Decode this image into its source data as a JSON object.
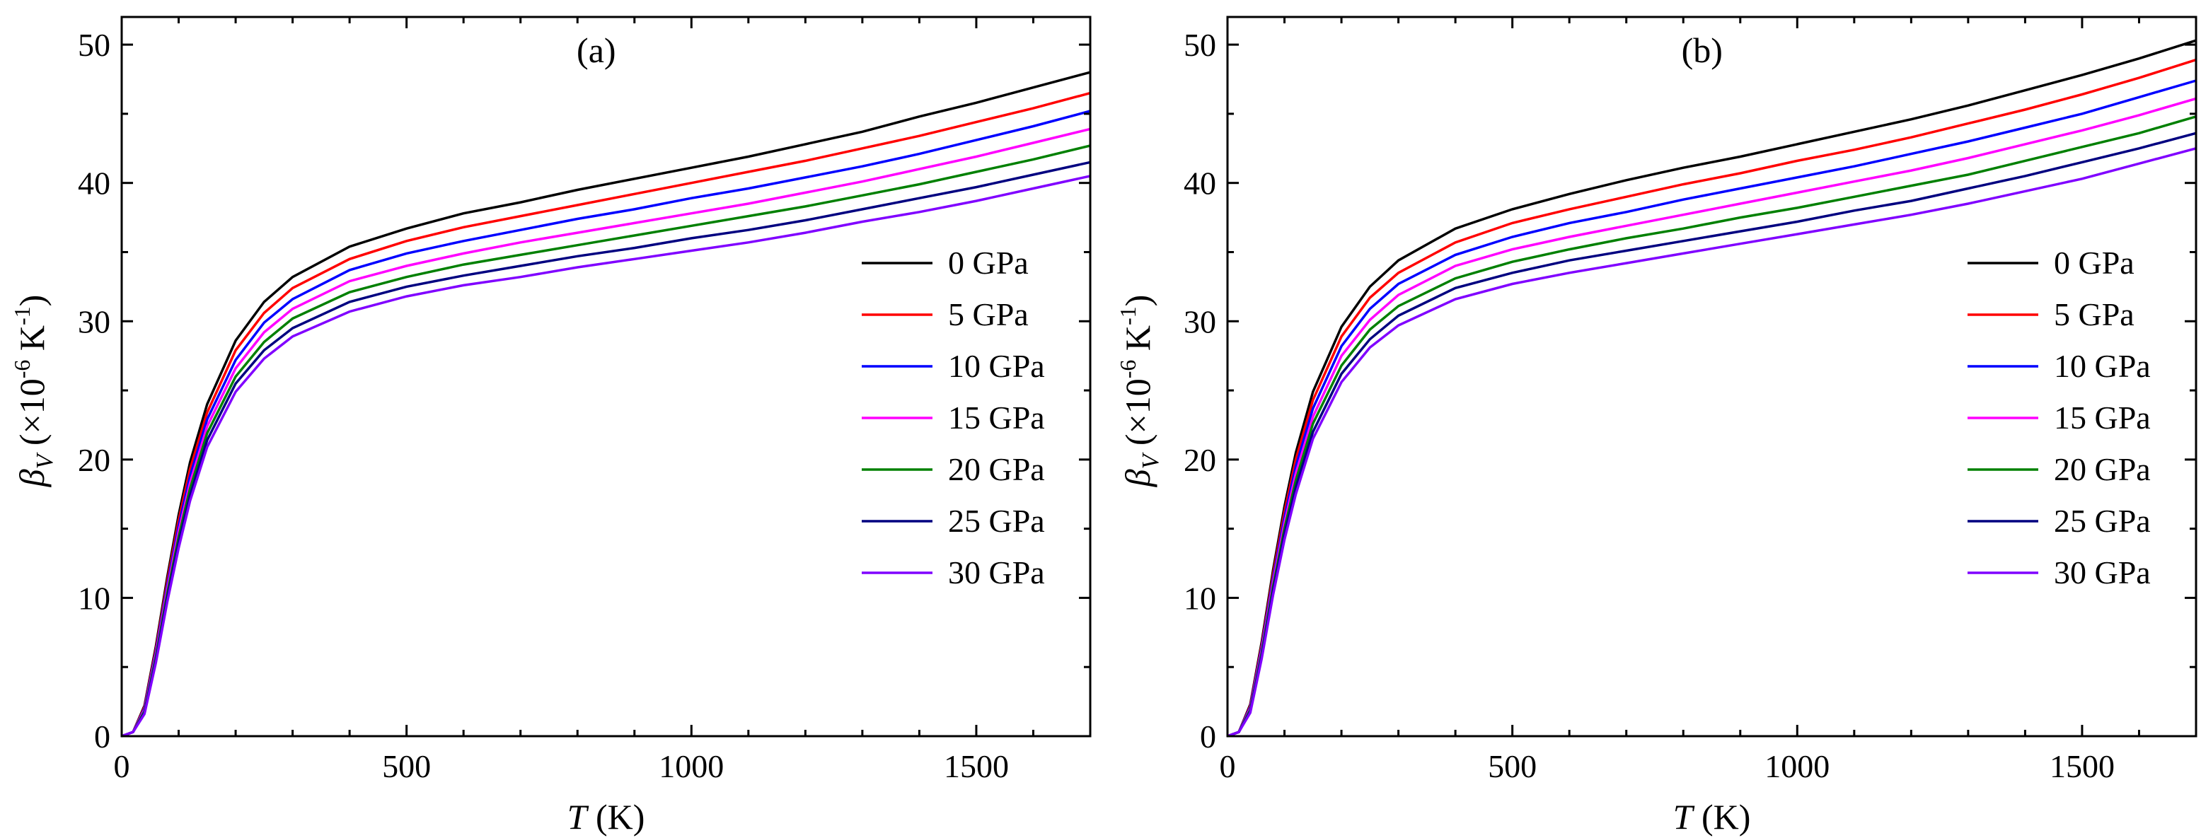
{
  "chart_data": [
    {
      "type": "line",
      "panel_label": "(a)",
      "xlabel": "T (K)",
      "ylabel": "β_V (×10^-6 K^-1)",
      "xlim": [
        0,
        1700
      ],
      "ylim": [
        0,
        52
      ],
      "xticks": [
        0,
        500,
        1000,
        1500
      ],
      "yticks": [
        0,
        10,
        20,
        30,
        40,
        50
      ],
      "legend_position": "right",
      "series": [
        {
          "name": "0 GPa",
          "color": "#000000",
          "x": [
            0,
            20,
            40,
            60,
            80,
            100,
            120,
            150,
            200,
            250,
            300,
            400,
            500,
            600,
            700,
            800,
            900,
            1000,
            1100,
            1200,
            1300,
            1400,
            1500,
            1600,
            1700
          ],
          "y": [
            0,
            0.3,
            2.2,
            6.5,
            11.5,
            16.0,
            19.8,
            24.0,
            28.6,
            31.4,
            33.2,
            35.4,
            36.7,
            37.8,
            38.6,
            39.5,
            40.3,
            41.1,
            41.9,
            42.8,
            43.7,
            44.8,
            45.8,
            46.9,
            48.0
          ]
        },
        {
          "name": "5 GPa",
          "color": "#ff0000",
          "x": [
            0,
            20,
            40,
            60,
            80,
            100,
            120,
            150,
            200,
            250,
            300,
            400,
            500,
            600,
            700,
            800,
            900,
            1000,
            1100,
            1200,
            1300,
            1400,
            1500,
            1600,
            1700
          ],
          "y": [
            0,
            0.3,
            2.1,
            6.3,
            11.2,
            15.6,
            19.3,
            23.4,
            27.9,
            30.6,
            32.4,
            34.5,
            35.8,
            36.8,
            37.6,
            38.4,
            39.2,
            40.0,
            40.8,
            41.6,
            42.5,
            43.4,
            44.4,
            45.4,
            46.5
          ]
        },
        {
          "name": "10 GPa",
          "color": "#0000ff",
          "x": [
            0,
            20,
            40,
            60,
            80,
            100,
            120,
            150,
            200,
            250,
            300,
            400,
            500,
            600,
            700,
            800,
            900,
            1000,
            1100,
            1200,
            1300,
            1400,
            1500,
            1600,
            1700
          ],
          "y": [
            0,
            0.3,
            2.0,
            6.1,
            10.9,
            15.2,
            18.8,
            22.9,
            27.2,
            29.9,
            31.6,
            33.7,
            34.9,
            35.8,
            36.6,
            37.4,
            38.1,
            38.9,
            39.6,
            40.4,
            41.2,
            42.1,
            43.1,
            44.1,
            45.2
          ]
        },
        {
          "name": "15 GPa",
          "color": "#ff00ff",
          "x": [
            0,
            20,
            40,
            60,
            80,
            100,
            120,
            150,
            200,
            250,
            300,
            400,
            500,
            600,
            700,
            800,
            900,
            1000,
            1100,
            1200,
            1300,
            1400,
            1500,
            1600,
            1700
          ],
          "y": [
            0,
            0.3,
            1.9,
            5.9,
            10.6,
            14.8,
            18.3,
            22.4,
            26.6,
            29.2,
            30.9,
            32.9,
            34.0,
            34.9,
            35.7,
            36.4,
            37.1,
            37.8,
            38.5,
            39.3,
            40.1,
            41.0,
            41.9,
            42.9,
            43.9
          ]
        },
        {
          "name": "20 GPa",
          "color": "#008000",
          "x": [
            0,
            20,
            40,
            60,
            80,
            100,
            120,
            150,
            200,
            250,
            300,
            400,
            500,
            600,
            700,
            800,
            900,
            1000,
            1100,
            1200,
            1300,
            1400,
            1500,
            1600,
            1700
          ],
          "y": [
            0,
            0.3,
            1.8,
            5.7,
            10.3,
            14.4,
            17.9,
            21.9,
            26.0,
            28.5,
            30.2,
            32.1,
            33.2,
            34.1,
            34.8,
            35.5,
            36.2,
            36.9,
            37.6,
            38.3,
            39.1,
            39.9,
            40.8,
            41.7,
            42.7
          ]
        },
        {
          "name": "25 GPa",
          "color": "#000080",
          "x": [
            0,
            20,
            40,
            60,
            80,
            100,
            120,
            150,
            200,
            250,
            300,
            400,
            500,
            600,
            700,
            800,
            900,
            1000,
            1100,
            1200,
            1300,
            1400,
            1500,
            1600,
            1700
          ],
          "y": [
            0,
            0.3,
            1.7,
            5.5,
            10.0,
            14.0,
            17.4,
            21.4,
            25.5,
            27.9,
            29.5,
            31.4,
            32.5,
            33.3,
            34.0,
            34.7,
            35.3,
            36.0,
            36.6,
            37.3,
            38.1,
            38.9,
            39.7,
            40.6,
            41.5
          ]
        },
        {
          "name": "30 GPa",
          "color": "#8000ff",
          "x": [
            0,
            20,
            40,
            60,
            80,
            100,
            120,
            150,
            200,
            250,
            300,
            400,
            500,
            600,
            700,
            800,
            900,
            1000,
            1100,
            1200,
            1300,
            1400,
            1500,
            1600,
            1700
          ],
          "y": [
            0,
            0.3,
            1.6,
            5.3,
            9.7,
            13.6,
            17.0,
            20.9,
            24.9,
            27.3,
            28.9,
            30.7,
            31.8,
            32.6,
            33.2,
            33.9,
            34.5,
            35.1,
            35.7,
            36.4,
            37.2,
            37.9,
            38.7,
            39.6,
            40.5
          ]
        }
      ]
    },
    {
      "type": "line",
      "panel_label": "(b)",
      "xlabel": "T (K)",
      "ylabel": "β_V (×10^-6 K^-1)",
      "xlim": [
        0,
        1700
      ],
      "ylim": [
        0,
        52
      ],
      "xticks": [
        0,
        500,
        1000,
        1500
      ],
      "yticks": [
        0,
        10,
        20,
        30,
        40,
        50
      ],
      "legend_position": "right",
      "series": [
        {
          "name": "0 GPa",
          "color": "#000000",
          "x": [
            0,
            20,
            40,
            60,
            80,
            100,
            120,
            150,
            200,
            250,
            300,
            400,
            500,
            600,
            700,
            800,
            900,
            1000,
            1100,
            1200,
            1300,
            1400,
            1500,
            1600,
            1700
          ],
          "y": [
            0,
            0.3,
            2.3,
            6.8,
            12.0,
            16.6,
            20.5,
            24.9,
            29.6,
            32.5,
            34.4,
            36.7,
            38.1,
            39.2,
            40.2,
            41.1,
            41.9,
            42.8,
            43.7,
            44.6,
            45.6,
            46.7,
            47.8,
            49.0,
            50.3
          ]
        },
        {
          "name": "5 GPa",
          "color": "#ff0000",
          "x": [
            0,
            20,
            40,
            60,
            80,
            100,
            120,
            150,
            200,
            250,
            300,
            400,
            500,
            600,
            700,
            800,
            900,
            1000,
            1100,
            1200,
            1300,
            1400,
            1500,
            1600,
            1700
          ],
          "y": [
            0,
            0.3,
            2.2,
            6.6,
            11.7,
            16.2,
            20.0,
            24.3,
            28.9,
            31.7,
            33.5,
            35.7,
            37.1,
            38.1,
            39.0,
            39.9,
            40.7,
            41.6,
            42.4,
            43.3,
            44.3,
            45.3,
            46.4,
            47.6,
            48.9
          ]
        },
        {
          "name": "10 GPa",
          "color": "#0000ff",
          "x": [
            0,
            20,
            40,
            60,
            80,
            100,
            120,
            150,
            200,
            250,
            300,
            400,
            500,
            600,
            700,
            800,
            900,
            1000,
            1100,
            1200,
            1300,
            1400,
            1500,
            1600,
            1700
          ],
          "y": [
            0,
            0.3,
            2.1,
            6.4,
            11.4,
            15.8,
            19.5,
            23.7,
            28.2,
            30.9,
            32.7,
            34.8,
            36.1,
            37.1,
            37.9,
            38.8,
            39.6,
            40.4,
            41.2,
            42.1,
            43.0,
            44.0,
            45.0,
            46.2,
            47.4
          ]
        },
        {
          "name": "15 GPa",
          "color": "#ff00ff",
          "x": [
            0,
            20,
            40,
            60,
            80,
            100,
            120,
            150,
            200,
            250,
            300,
            400,
            500,
            600,
            700,
            800,
            900,
            1000,
            1100,
            1200,
            1300,
            1400,
            1500,
            1600,
            1700
          ],
          "y": [
            0,
            0.3,
            2.0,
            6.2,
            11.1,
            15.4,
            19.0,
            23.1,
            27.5,
            30.1,
            31.9,
            34.0,
            35.2,
            36.1,
            36.9,
            37.7,
            38.5,
            39.3,
            40.1,
            40.9,
            41.8,
            42.8,
            43.8,
            44.9,
            46.1
          ]
        },
        {
          "name": "20 GPa",
          "color": "#008000",
          "x": [
            0,
            20,
            40,
            60,
            80,
            100,
            120,
            150,
            200,
            250,
            300,
            400,
            500,
            600,
            700,
            800,
            900,
            1000,
            1100,
            1200,
            1300,
            1400,
            1500,
            1600,
            1700
          ],
          "y": [
            0,
            0.3,
            1.9,
            6.0,
            10.8,
            15.0,
            18.5,
            22.6,
            26.8,
            29.4,
            31.1,
            33.1,
            34.3,
            35.2,
            36.0,
            36.7,
            37.5,
            38.2,
            39.0,
            39.8,
            40.6,
            41.6,
            42.6,
            43.6,
            44.8
          ]
        },
        {
          "name": "25 GPa",
          "color": "#000080",
          "x": [
            0,
            20,
            40,
            60,
            80,
            100,
            120,
            150,
            200,
            250,
            300,
            400,
            500,
            600,
            700,
            800,
            900,
            1000,
            1100,
            1200,
            1300,
            1400,
            1500,
            1600,
            1700
          ],
          "y": [
            0,
            0.3,
            1.8,
            5.8,
            10.5,
            14.6,
            18.0,
            22.0,
            26.2,
            28.7,
            30.4,
            32.4,
            33.5,
            34.4,
            35.1,
            35.8,
            36.5,
            37.2,
            38.0,
            38.7,
            39.6,
            40.5,
            41.5,
            42.5,
            43.6
          ]
        },
        {
          "name": "30 GPa",
          "color": "#8000ff",
          "x": [
            0,
            20,
            40,
            60,
            80,
            100,
            120,
            150,
            200,
            250,
            300,
            400,
            500,
            600,
            700,
            800,
            900,
            1000,
            1100,
            1200,
            1300,
            1400,
            1500,
            1600,
            1700
          ],
          "y": [
            0,
            0.3,
            1.7,
            5.6,
            10.2,
            14.2,
            17.5,
            21.5,
            25.6,
            28.1,
            29.7,
            31.6,
            32.7,
            33.5,
            34.2,
            34.9,
            35.6,
            36.3,
            37.0,
            37.7,
            38.5,
            39.4,
            40.3,
            41.4,
            42.5
          ]
        }
      ]
    }
  ]
}
